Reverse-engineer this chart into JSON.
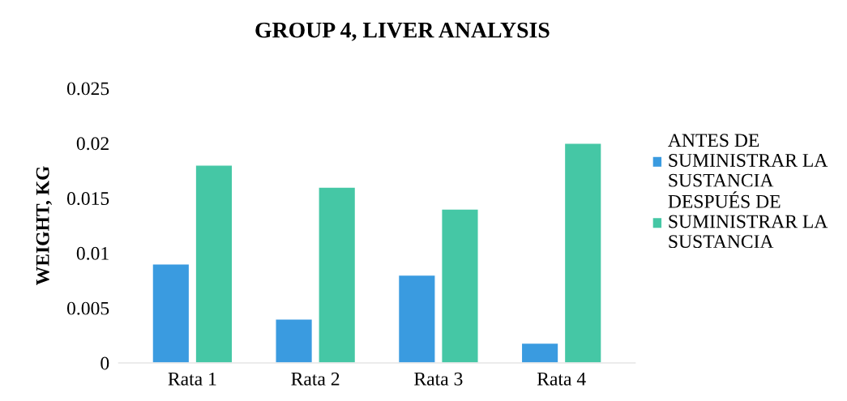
{
  "chart_data": {
    "type": "bar",
    "title": "GROUP 4, LIVER ANALYSIS",
    "ylabel": "WEIGHT, KG",
    "categories": [
      "Rata 1",
      "Rata 2",
      "Rata 3",
      "Rata 4"
    ],
    "series": [
      {
        "name": "ANTES DE SUMINISTRAR LA SUSTANCIA",
        "color": "#3a9be0",
        "values": [
          0.009,
          0.004,
          0.008,
          0.0018
        ]
      },
      {
        "name": "DESPUÉS DE SUMINISTRAR LA SUSTANCIA",
        "color": "#45c7a5",
        "values": [
          0.018,
          0.016,
          0.014,
          0.02
        ]
      }
    ],
    "ylim": [
      0,
      0.025
    ],
    "yticks": [
      0,
      0.005,
      0.01,
      0.015,
      0.02,
      0.025
    ],
    "grid": false,
    "legend": "right"
  }
}
